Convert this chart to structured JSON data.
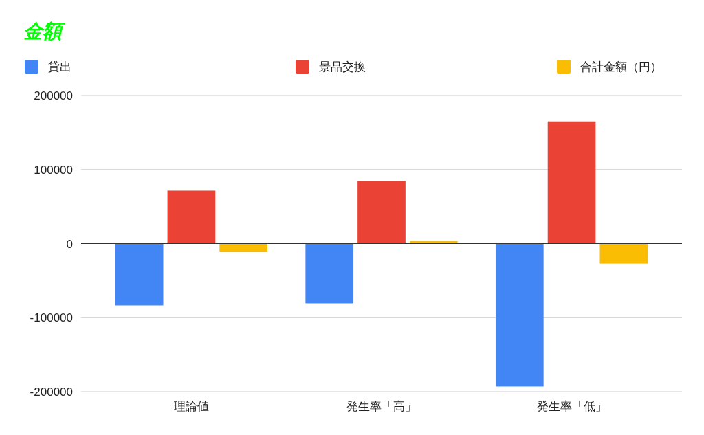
{
  "chart_data": {
    "type": "bar",
    "title": "金額",
    "categories": [
      "理論値",
      "発生率「高」",
      "発生率「低」"
    ],
    "series": [
      {
        "name": "貸出",
        "color": "#4285f4",
        "values": [
          -83500,
          -80700,
          -193000
        ]
      },
      {
        "name": "景品交換",
        "color": "#ea4335",
        "values": [
          71500,
          84500,
          165000
        ]
      },
      {
        "name": "合計金額（円）",
        "color": "#fbbc04",
        "values": [
          -11000,
          3700,
          -27000
        ]
      }
    ],
    "ylim": [
      -200000,
      200000
    ],
    "yticks": [
      -200000,
      -100000,
      0,
      100000,
      200000
    ],
    "grid": "y",
    "legend": "top"
  }
}
